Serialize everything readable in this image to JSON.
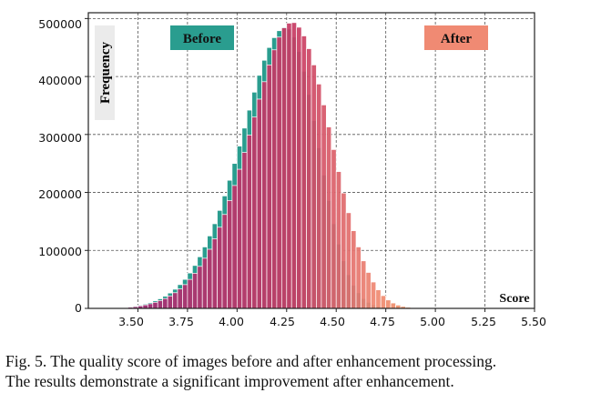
{
  "chart_data": {
    "type": "bar",
    "title": "",
    "xlabel": "Score",
    "ylabel": "Frequency",
    "xlim": [
      3.25,
      5.5
    ],
    "ylim": [
      0,
      510000
    ],
    "bin_width": 0.025,
    "x_ticks": [
      "3.50",
      "3.75",
      "4.00",
      "4.25",
      "4.50",
      "4.75",
      "5.00",
      "5.25",
      "5.50"
    ],
    "y_ticks": [
      "0",
      "100000",
      "200000",
      "300000",
      "400000",
      "500000"
    ],
    "grid": true,
    "series": [
      {
        "name": "Before",
        "color": "#2a9d8f",
        "x_start": 3.35,
        "values": [
          500,
          800,
          1200,
          1800,
          2700,
          3900,
          5500,
          7500,
          10000,
          13000,
          16500,
          21000,
          26500,
          33000,
          41000,
          50000,
          61000,
          74000,
          89000,
          106000,
          125000,
          146000,
          169000,
          194000,
          221000,
          250000,
          280000,
          311000,
          342000,
          373000,
          402000,
          428000,
          450000,
          467000,
          479000,
          485000,
          482000,
          468000,
          443000,
          409000,
          369000,
          324000,
          277000,
          230000,
          186000,
          146000,
          111000,
          82000,
          58000,
          40000,
          27000,
          17000,
          10500,
          6200,
          3500,
          1900,
          1000,
          500,
          250,
          120
        ]
      },
      {
        "name": "After",
        "color": "#f08a73",
        "x_start": 3.35,
        "values": [
          200,
          400,
          800,
          1300,
          2000,
          3000,
          4300,
          6000,
          8000,
          10500,
          13500,
          17000,
          21500,
          27000,
          33500,
          41000,
          50000,
          60500,
          72500,
          86500,
          102000,
          120000,
          140000,
          162000,
          186000,
          212000,
          240000,
          269000,
          299000,
          330000,
          361000,
          391000,
          420000,
          446000,
          468000,
          484000,
          492000,
          493000,
          485000,
          470000,
          448000,
          420000,
          387000,
          351000,
          313000,
          274000,
          236000,
          199000,
          165000,
          134000,
          106000,
          82000,
          62000,
          45500,
          32000,
          22000,
          14500,
          9300,
          5700,
          3400,
          1900,
          1000,
          500,
          220,
          80
        ]
      }
    ],
    "legend": [
      "Before",
      "After"
    ],
    "legend_placement": "top"
  },
  "caption": {
    "line1": "Fig. 5.  The quality score of images before and after enhancement processing.",
    "line2": "The results demonstrate a significant improvement after enhancement."
  }
}
